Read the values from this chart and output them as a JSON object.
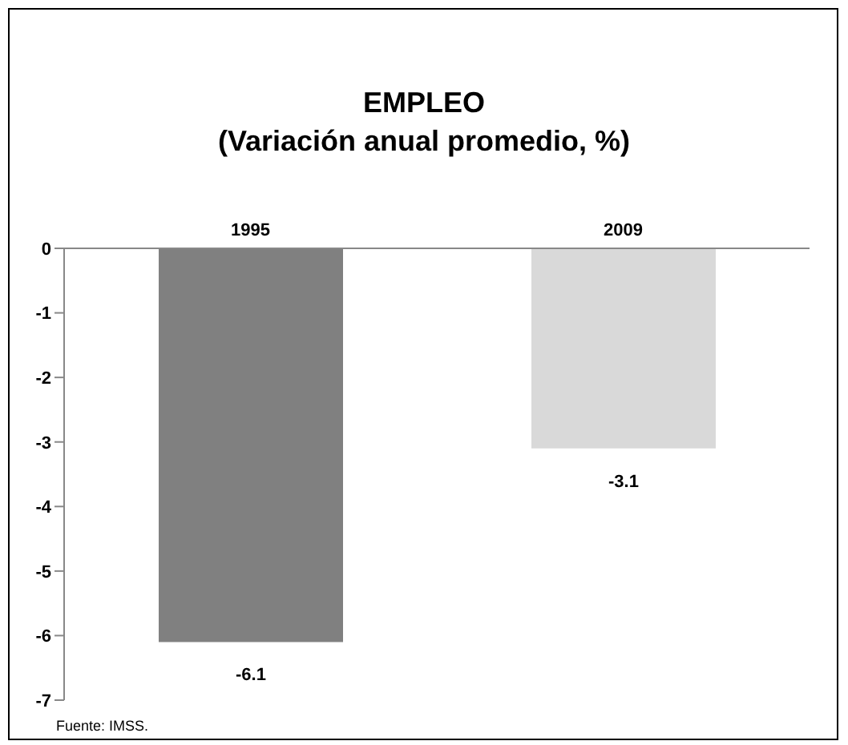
{
  "chart_data": {
    "type": "bar",
    "title": "EMPLEO",
    "subtitle": "(Variación anual promedio, %)",
    "categories": [
      "1995",
      "2009"
    ],
    "values": [
      -6.1,
      -3.1
    ],
    "colors": [
      "#808080",
      "#d9d9d9"
    ],
    "ylim": [
      -7,
      0
    ],
    "yticks": [
      0,
      -1,
      -2,
      -3,
      -4,
      -5,
      -6,
      -7
    ],
    "grid": false,
    "data_labels": true,
    "annotations": [
      "Fuente: IMSS."
    ]
  }
}
